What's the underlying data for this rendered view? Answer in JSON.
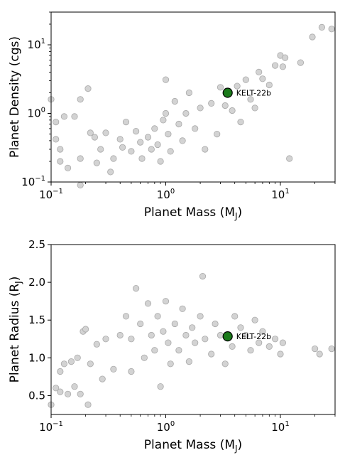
{
  "chart_data": [
    {
      "type": "scatter",
      "xlabel": "Planet Mass (M",
      "xlabel_sub": "J",
      "xlabel_close": ")",
      "ylabel": "Planet Density (cgs)",
      "xscale": "log",
      "yscale": "log",
      "xlim": [
        0.1,
        30
      ],
      "ylim": [
        0.1,
        30
      ],
      "x_ticks": [
        {
          "value": 0.1,
          "base": "10",
          "exp": "−1"
        },
        {
          "value": 1,
          "base": "10",
          "exp": "0"
        },
        {
          "value": 10,
          "base": "10",
          "exp": "1"
        }
      ],
      "y_ticks": [
        {
          "value": 0.1,
          "base": "10",
          "exp": "−1"
        },
        {
          "value": 1,
          "base": "10",
          "exp": "0"
        },
        {
          "value": 10,
          "base": "10",
          "exp": "1"
        }
      ],
      "colors": {
        "population": "#d3d3d3",
        "population_edge": "#a9a9a9",
        "highlight": "#1a7a1a",
        "highlight_edge": "#000000"
      },
      "highlight": {
        "label": "KELT-22b",
        "x": 3.47,
        "y": 2.0
      },
      "population": [
        [
          0.1,
          1.6
        ],
        [
          0.11,
          0.75
        ],
        [
          0.11,
          0.42
        ],
        [
          0.12,
          0.3
        ],
        [
          0.12,
          0.2
        ],
        [
          0.13,
          0.9
        ],
        [
          0.14,
          0.16
        ],
        [
          0.16,
          0.9
        ],
        [
          0.18,
          1.6
        ],
        [
          0.18,
          0.22
        ],
        [
          0.18,
          0.09
        ],
        [
          0.21,
          2.3
        ],
        [
          0.22,
          0.52
        ],
        [
          0.24,
          0.45
        ],
        [
          0.25,
          0.19
        ],
        [
          0.27,
          0.3
        ],
        [
          0.3,
          0.52
        ],
        [
          0.33,
          0.14
        ],
        [
          0.35,
          0.22
        ],
        [
          0.4,
          0.42
        ],
        [
          0.42,
          0.32
        ],
        [
          0.45,
          0.75
        ],
        [
          0.5,
          0.28
        ],
        [
          0.55,
          0.55
        ],
        [
          0.6,
          0.38
        ],
        [
          0.62,
          0.22
        ],
        [
          0.7,
          0.45
        ],
        [
          0.75,
          0.3
        ],
        [
          0.8,
          0.6
        ],
        [
          0.85,
          0.35
        ],
        [
          0.9,
          0.2
        ],
        [
          0.95,
          0.8
        ],
        [
          1.0,
          3.1
        ],
        [
          1.0,
          1.0
        ],
        [
          1.05,
          0.5
        ],
        [
          1.1,
          0.28
        ],
        [
          1.2,
          1.5
        ],
        [
          1.3,
          0.7
        ],
        [
          1.4,
          0.4
        ],
        [
          1.5,
          1.0
        ],
        [
          1.6,
          2.0
        ],
        [
          1.8,
          0.6
        ],
        [
          2.0,
          1.2
        ],
        [
          2.2,
          0.3
        ],
        [
          2.5,
          1.4
        ],
        [
          2.8,
          0.5
        ],
        [
          3.0,
          2.4
        ],
        [
          3.3,
          1.3
        ],
        [
          3.8,
          1.1
        ],
        [
          4.2,
          2.5
        ],
        [
          4.5,
          0.75
        ],
        [
          5.0,
          3.1
        ],
        [
          5.5,
          1.6
        ],
        [
          6.0,
          1.2
        ],
        [
          6.5,
          4.0
        ],
        [
          7.0,
          3.2
        ],
        [
          8.0,
          2.6
        ],
        [
          9.0,
          5.0
        ],
        [
          10.0,
          7.0
        ],
        [
          10.5,
          4.8
        ],
        [
          11.0,
          6.5
        ],
        [
          12.0,
          0.22
        ],
        [
          15.0,
          5.5
        ],
        [
          19.0,
          13.0
        ],
        [
          23.0,
          18.0
        ],
        [
          28.0,
          17.0
        ]
      ]
    },
    {
      "type": "scatter",
      "xlabel": "Planet Mass (M",
      "xlabel_sub": "J",
      "xlabel_close": ")",
      "ylabel": "Planet Radius (R",
      "ylabel_sub": "J",
      "ylabel_close": ")",
      "xscale": "log",
      "xlim": [
        0.1,
        30
      ],
      "ylim": [
        0.25,
        2.5
      ],
      "x_ticks": [
        {
          "value": 0.1,
          "base": "10",
          "exp": "−1"
        },
        {
          "value": 1,
          "base": "10",
          "exp": "0"
        },
        {
          "value": 10,
          "base": "10",
          "exp": "1"
        }
      ],
      "y_ticks": [
        {
          "value": 0.5,
          "label": "0.5"
        },
        {
          "value": 1.0,
          "label": "1.0"
        },
        {
          "value": 1.5,
          "label": "1.5"
        },
        {
          "value": 2.0,
          "label": "2.0"
        },
        {
          "value": 2.5,
          "label": "2.5"
        }
      ],
      "colors": {
        "population": "#d3d3d3",
        "population_edge": "#a9a9a9",
        "highlight": "#1a7a1a",
        "highlight_edge": "#000000"
      },
      "highlight": {
        "label": "KELT-22b",
        "x": 3.47,
        "y": 1.285
      },
      "population": [
        [
          0.1,
          0.38
        ],
        [
          0.11,
          0.6
        ],
        [
          0.12,
          0.55
        ],
        [
          0.12,
          0.82
        ],
        [
          0.13,
          0.92
        ],
        [
          0.14,
          0.52
        ],
        [
          0.15,
          0.95
        ],
        [
          0.16,
          0.62
        ],
        [
          0.17,
          1.0
        ],
        [
          0.18,
          0.52
        ],
        [
          0.19,
          1.35
        ],
        [
          0.2,
          1.38
        ],
        [
          0.21,
          0.38
        ],
        [
          0.22,
          0.92
        ],
        [
          0.25,
          1.18
        ],
        [
          0.28,
          0.72
        ],
        [
          0.3,
          1.25
        ],
        [
          0.35,
          0.85
        ],
        [
          0.4,
          1.3
        ],
        [
          0.45,
          1.55
        ],
        [
          0.5,
          1.25
        ],
        [
          0.5,
          0.82
        ],
        [
          0.55,
          1.92
        ],
        [
          0.6,
          1.45
        ],
        [
          0.65,
          1.0
        ],
        [
          0.7,
          1.72
        ],
        [
          0.75,
          1.3
        ],
        [
          0.8,
          1.1
        ],
        [
          0.85,
          1.55
        ],
        [
          0.9,
          0.62
        ],
        [
          0.95,
          1.35
        ],
        [
          1.0,
          1.75
        ],
        [
          1.05,
          1.2
        ],
        [
          1.1,
          0.92
        ],
        [
          1.2,
          1.45
        ],
        [
          1.3,
          1.1
        ],
        [
          1.4,
          1.65
        ],
        [
          1.5,
          1.3
        ],
        [
          1.6,
          0.95
        ],
        [
          1.7,
          1.4
        ],
        [
          1.8,
          1.2
        ],
        [
          2.0,
          1.55
        ],
        [
          2.1,
          2.08
        ],
        [
          2.2,
          1.25
        ],
        [
          2.5,
          1.05
        ],
        [
          2.7,
          1.45
        ],
        [
          3.0,
          1.3
        ],
        [
          3.3,
          0.92
        ],
        [
          3.8,
          1.15
        ],
        [
          4.0,
          1.55
        ],
        [
          4.5,
          1.4
        ],
        [
          5.0,
          1.3
        ],
        [
          5.5,
          1.1
        ],
        [
          6.0,
          1.5
        ],
        [
          6.5,
          1.2
        ],
        [
          7.0,
          1.35
        ],
        [
          8.0,
          1.15
        ],
        [
          9.0,
          1.25
        ],
        [
          10.0,
          1.05
        ],
        [
          10.5,
          1.2
        ],
        [
          20.0,
          1.12
        ],
        [
          22.0,
          1.05
        ],
        [
          28.0,
          1.12
        ]
      ]
    }
  ]
}
